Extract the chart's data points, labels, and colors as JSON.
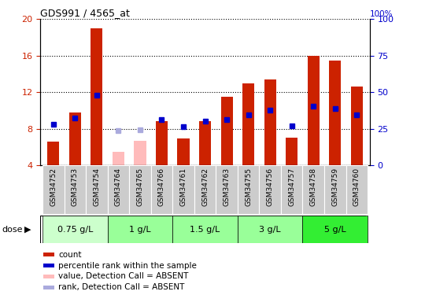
{
  "title": "GDS991 / 4565_at",
  "samples": [
    "GSM34752",
    "GSM34753",
    "GSM34754",
    "GSM34764",
    "GSM34765",
    "GSM34766",
    "GSM34761",
    "GSM34762",
    "GSM34763",
    "GSM34755",
    "GSM34756",
    "GSM34757",
    "GSM34758",
    "GSM34759",
    "GSM34760"
  ],
  "count_values": [
    6.6,
    9.8,
    19.0,
    null,
    null,
    8.8,
    6.9,
    8.8,
    11.5,
    13.0,
    13.4,
    7.0,
    16.0,
    15.5,
    12.6
  ],
  "absent_count_values": [
    null,
    null,
    null,
    5.5,
    6.7,
    null,
    null,
    null,
    null,
    null,
    null,
    null,
    null,
    null,
    null
  ],
  "rank_values": [
    8.5,
    9.2,
    11.7,
    null,
    null,
    9.0,
    8.2,
    8.8,
    9.0,
    9.5,
    10.0,
    8.3,
    10.5,
    10.2,
    9.5
  ],
  "absent_rank_values": [
    null,
    null,
    null,
    7.8,
    7.9,
    null,
    null,
    null,
    null,
    null,
    null,
    null,
    null,
    null,
    null
  ],
  "ylim_left": [
    4,
    20
  ],
  "ylim_right": [
    0,
    100
  ],
  "yticks_left": [
    4,
    8,
    12,
    16,
    20
  ],
  "yticks_right": [
    0,
    25,
    50,
    75,
    100
  ],
  "bar_color_red": "#cc2200",
  "bar_color_pink": "#ffbbbb",
  "dot_color_blue": "#0000cc",
  "dot_color_lightblue": "#aaaadd",
  "dose_groups": [
    {
      "label": "0.75 g/L",
      "start": 0,
      "end": 2,
      "color": "#ccffcc"
    },
    {
      "label": "1 g/L",
      "start": 3,
      "end": 5,
      "color": "#99ff99"
    },
    {
      "label": "1.5 g/L",
      "start": 6,
      "end": 8,
      "color": "#99ff99"
    },
    {
      "label": "3 g/L",
      "start": 9,
      "end": 11,
      "color": "#99ff99"
    },
    {
      "label": "5 g/L",
      "start": 12,
      "end": 14,
      "color": "#33ee33"
    }
  ],
  "legend_items": [
    {
      "color": "#cc2200",
      "label": "count"
    },
    {
      "color": "#0000cc",
      "label": "percentile rank within the sample"
    },
    {
      "color": "#ffbbbb",
      "label": "value, Detection Call = ABSENT"
    },
    {
      "color": "#aaaadd",
      "label": "rank, Detection Call = ABSENT"
    }
  ]
}
